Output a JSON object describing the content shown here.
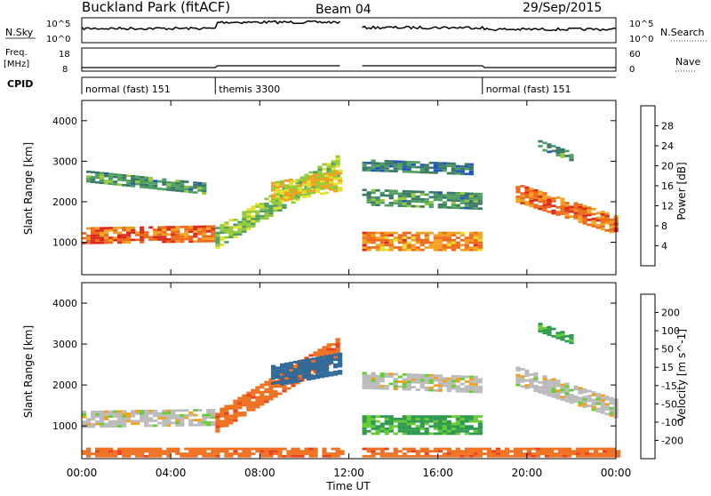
{
  "header": {
    "station": "Buckland Park (fitACF)",
    "beam": "Beam 04",
    "date": "29/Sep/2015"
  },
  "aux_panels": {
    "nsky": {
      "label": "N.Sky",
      "ticks": [
        "10^5",
        "10^0"
      ]
    },
    "nsearch": {
      "label": "N.Search",
      "ticks": [
        "10^5",
        "10^0"
      ]
    },
    "freq": {
      "label_line1": "Freq.",
      "label_line2": "[MHz]",
      "ticks": [
        "18",
        "8"
      ]
    },
    "nave": {
      "label": "Nave",
      "ticks": [
        "60",
        "0"
      ]
    },
    "cpid": {
      "label": "CPID",
      "segments": [
        {
          "name": "normal (fast) 151",
          "start": 0.0,
          "end": 6.0
        },
        {
          "name": "themis 3300",
          "start": 6.0,
          "end": 18.0
        },
        {
          "name": "normal (fast) 151",
          "start": 18.0,
          "end": 24.0
        }
      ]
    }
  },
  "chart_data": [
    {
      "type": "heatmap",
      "quantity": "Power",
      "ylabel": "Slant Range [km]",
      "ylim": [
        200,
        4500
      ],
      "yticks": [
        "1000",
        "2000",
        "3000",
        "4000"
      ],
      "xlim": [
        0,
        24
      ],
      "colorbar": {
        "label": "Power [dB]",
        "ticks": [
          "28",
          "24",
          "20",
          "16",
          "12",
          "8",
          "4"
        ],
        "range": [
          0,
          32
        ],
        "colors": [
          "#0022dd",
          "#2255bb",
          "#3a7a66",
          "#4f9f60",
          "#95c93a",
          "#e2e02a",
          "#f2a020",
          "#ee6a18",
          "#dd2a18",
          "#cc0000"
        ]
      },
      "data_gap_ut": [
        11.6,
        12.5
      ],
      "echo_bands": [
        {
          "start": 0.0,
          "end": 6.0,
          "range_center": [
            1150,
            1200
          ],
          "half_width": 200,
          "power": 24
        },
        {
          "start": 6.0,
          "end": 11.5,
          "range_center": [
            1100,
            2900
          ],
          "half_width": 260,
          "power": 14
        },
        {
          "start": 0.2,
          "end": 5.5,
          "range_center": [
            2600,
            2300
          ],
          "half_width": 130,
          "power": 10
        },
        {
          "start": 8.5,
          "end": 11.5,
          "range_center": [
            2200,
            2500
          ],
          "half_width": 250,
          "power": 18
        },
        {
          "start": 12.6,
          "end": 17.8,
          "range_center": [
            1000,
            1000
          ],
          "half_width": 220,
          "power": 22
        },
        {
          "start": 12.6,
          "end": 17.8,
          "range_center": [
            2100,
            2000
          ],
          "half_width": 200,
          "power": 10
        },
        {
          "start": 12.6,
          "end": 17.5,
          "range_center": [
            2900,
            2800
          ],
          "half_width": 150,
          "power": 8
        },
        {
          "start": 19.5,
          "end": 24.0,
          "range_center": [
            2200,
            1400
          ],
          "half_width": 230,
          "power": 24
        },
        {
          "start": 20.5,
          "end": 22.0,
          "range_center": [
            3400,
            3100
          ],
          "half_width": 120,
          "power": 10
        }
      ]
    },
    {
      "type": "heatmap",
      "quantity": "Velocity",
      "ylabel": "Slant Range [km]",
      "ylim": [
        200,
        4500
      ],
      "yticks": [
        "1000",
        "2000",
        "3000",
        "4000"
      ],
      "xlim": [
        0,
        24
      ],
      "colorbar": {
        "label": "Velocity [m s^-1]",
        "ticks": [
          "200",
          "100",
          "50",
          "15",
          "-15",
          "-50",
          "-100",
          "-200"
        ],
        "colors": [
          "#2a3aa8",
          "#2f6a9a",
          "#2f9a50",
          "#66cc33",
          "#bbbbbb",
          "#bbbbbb",
          "#f0a020",
          "#ee7020",
          "#e8401c",
          "#dd0000"
        ]
      },
      "data_gap_ut": [
        11.6,
        12.5
      ],
      "echo_bands": [
        {
          "start": 0.0,
          "end": 6.0,
          "range_center": [
            1150,
            1200
          ],
          "half_width": 200,
          "velocity": 0
        },
        {
          "start": 6.0,
          "end": 11.5,
          "range_center": [
            1100,
            2900
          ],
          "half_width": 260,
          "velocity": -60
        },
        {
          "start": 8.5,
          "end": 11.5,
          "range_center": [
            2200,
            2500
          ],
          "half_width": 250,
          "velocity": 120
        },
        {
          "start": 12.6,
          "end": 17.8,
          "range_center": [
            1000,
            1000
          ],
          "half_width": 220,
          "velocity": 40
        },
        {
          "start": 12.6,
          "end": 17.8,
          "range_center": [
            2100,
            2000
          ],
          "half_width": 200,
          "velocity": 0
        },
        {
          "start": 19.5,
          "end": 24.0,
          "range_center": [
            2200,
            1400
          ],
          "half_width": 230,
          "velocity": 0
        },
        {
          "start": 20.5,
          "end": 22.0,
          "range_center": [
            3400,
            3100
          ],
          "half_width": 120,
          "velocity": 40
        },
        {
          "start": 0.0,
          "end": 24.0,
          "range_center": [
            350,
            350
          ],
          "half_width": 120,
          "velocity": -60
        }
      ]
    }
  ],
  "xaxis": {
    "label": "Time UT",
    "ticks": [
      "00:00",
      "04:00",
      "08:00",
      "12:00",
      "16:00",
      "20:00",
      "00:00"
    ],
    "tick_values": [
      0,
      4,
      8,
      12,
      16,
      20,
      24
    ]
  }
}
